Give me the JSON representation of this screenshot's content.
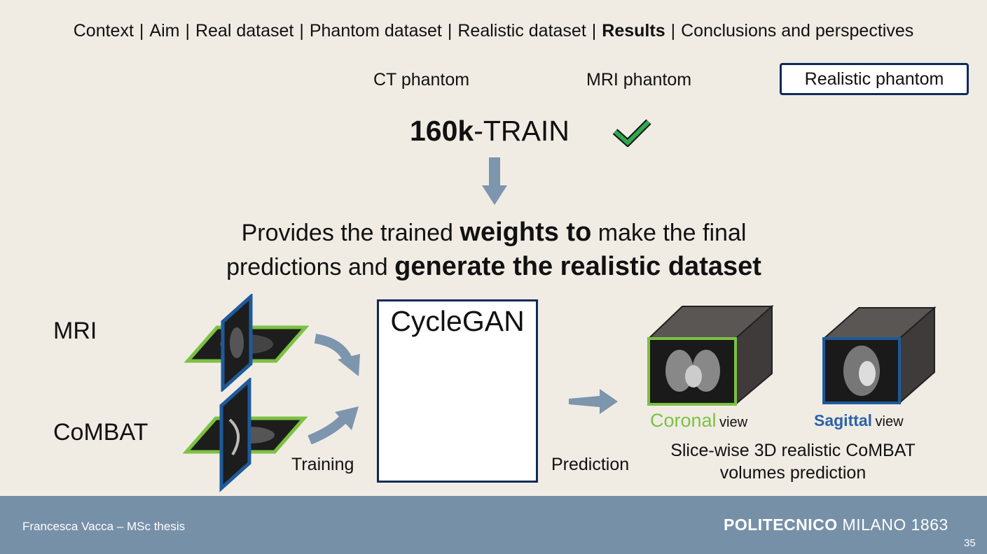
{
  "nav": {
    "items": [
      "Context",
      "Aim",
      "Real dataset",
      "Phantom dataset",
      "Realistic dataset",
      "Results",
      "Conclusions and perspectives"
    ],
    "separator": "|",
    "active": "Results"
  },
  "tabs": {
    "ct": "CT phantom",
    "mri": "MRI phantom",
    "realistic": "Realistic phantom"
  },
  "train": {
    "bold": "160k",
    "rest": "-TRAIN"
  },
  "provides": {
    "p1": "Provides the trained ",
    "b1": "weights to",
    "p2": " make the final",
    "p3": "predictions and ",
    "b2": "generate the realistic dataset"
  },
  "labels": {
    "mri": "MRI",
    "combat": "CoMBAT",
    "training": "Training",
    "cyclegan": "CycleGAN",
    "prediction": "Prediction",
    "coronal": "Coronal",
    "sagittal": "Sagittal",
    "view": "view",
    "result_line1": "Slice-wise 3D realistic CoMBAT",
    "result_line2": "volumes prediction"
  },
  "footer": {
    "author": "Francesca Vacca – MSc thesis",
    "logo_bold": "POLITECNICO",
    "logo_rest": " MILANO 1863",
    "page": "35"
  },
  "colors": {
    "navy": "#0f2a5c",
    "green": "#7cc142",
    "arrow": "#7d95ad",
    "footer": "#7690a8"
  }
}
